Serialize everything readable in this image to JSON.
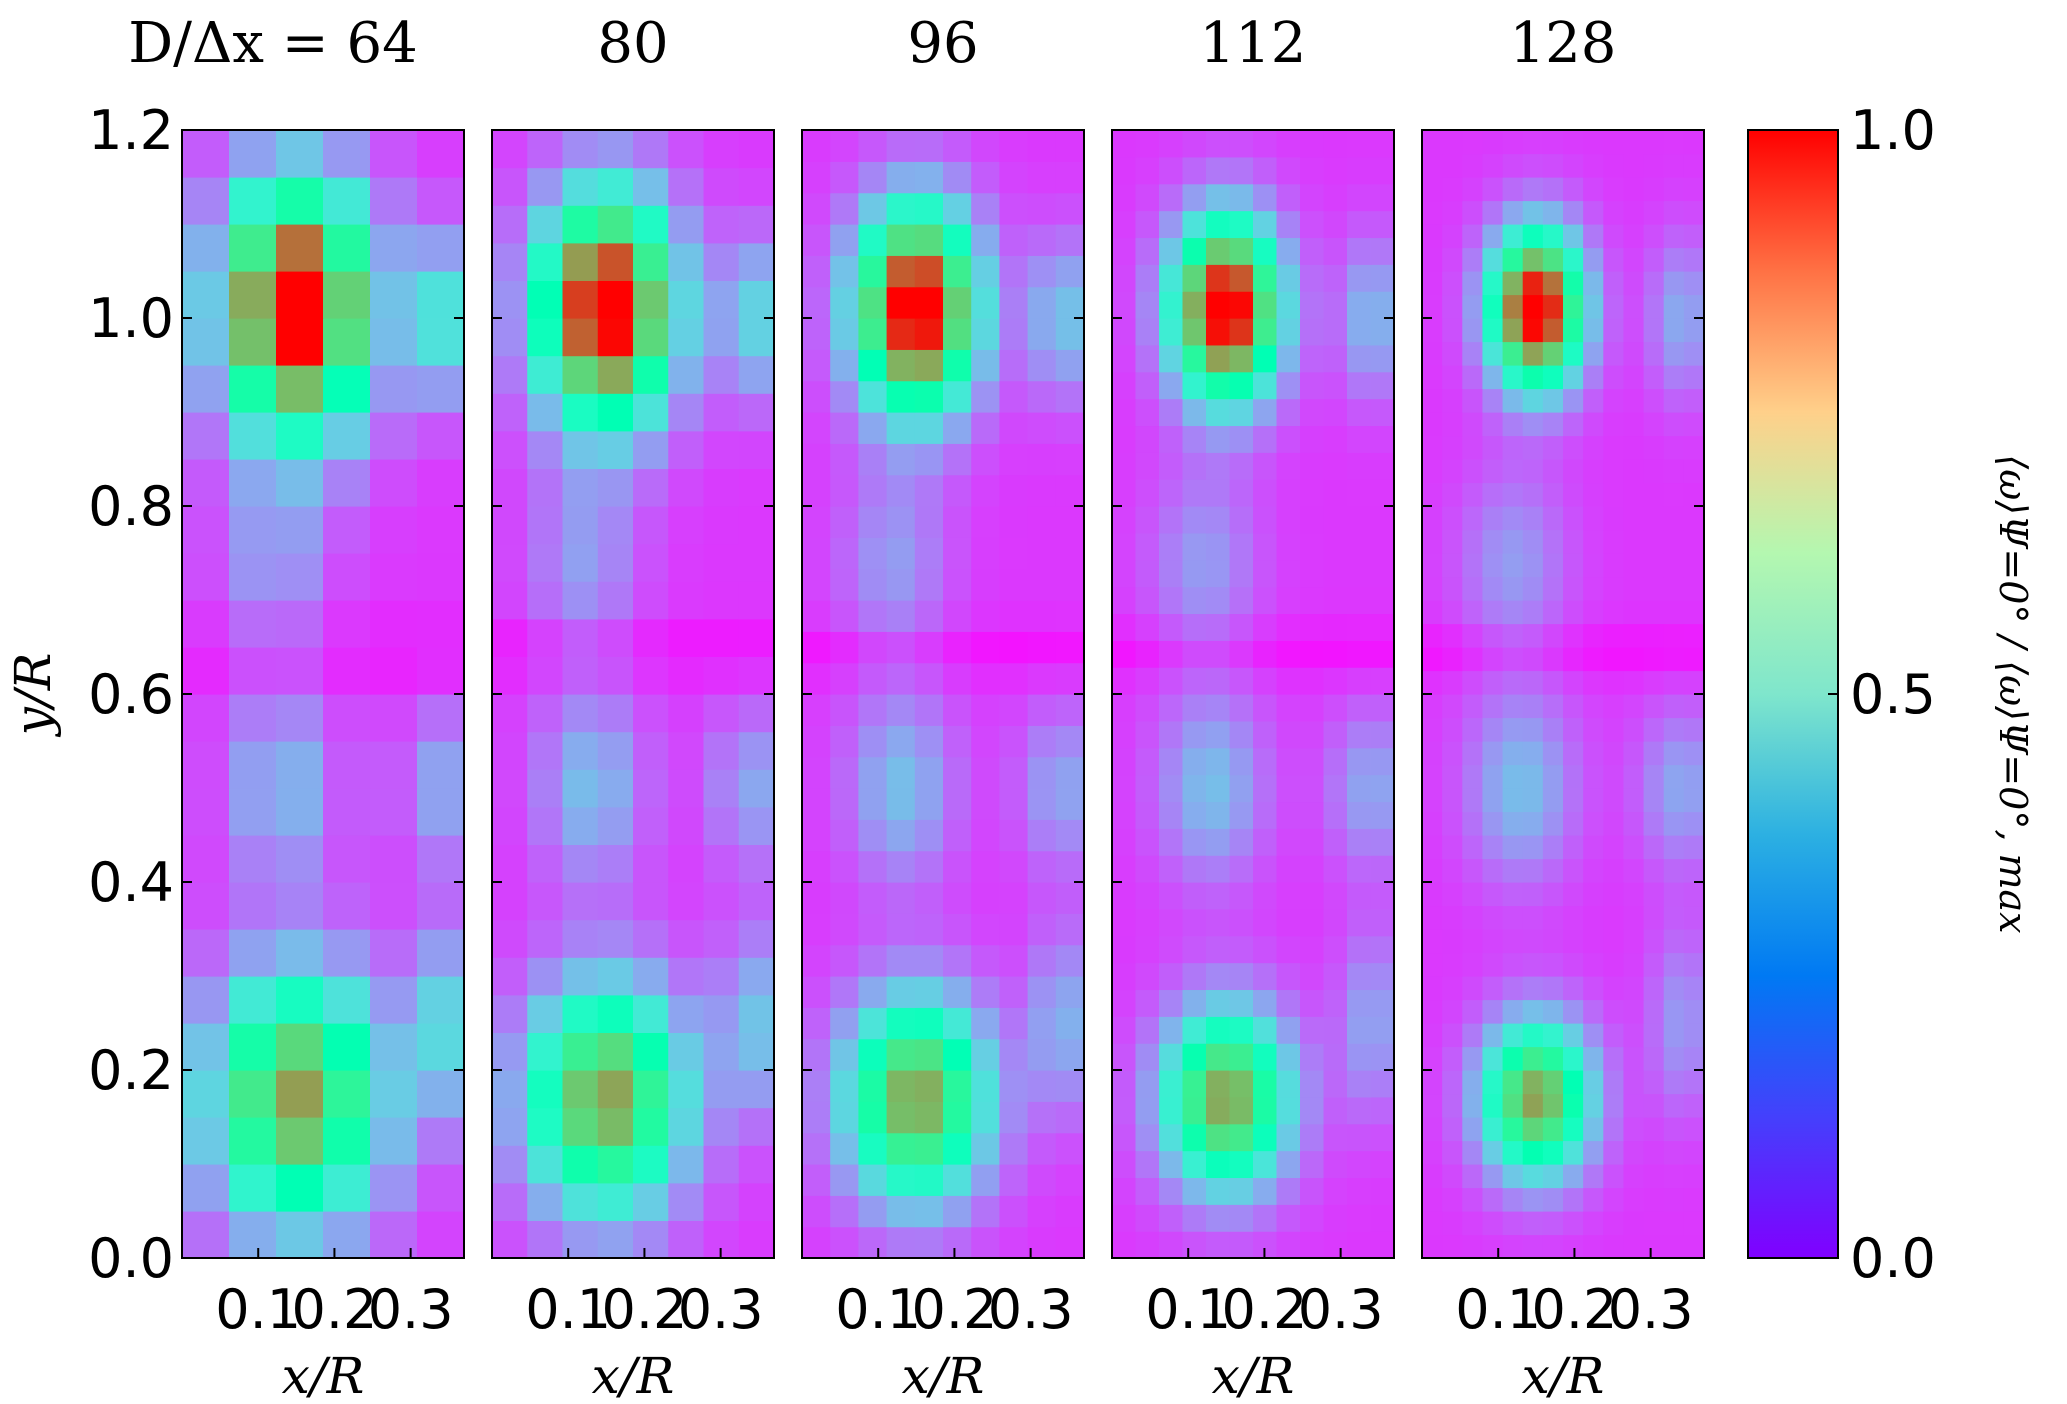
{
  "chart_data": {
    "type": "heatmap",
    "description_note": "",
    "panels": [
      {
        "title": "D/Δx = 64",
        "resolution": 64,
        "grid": {
          "nx": 6,
          "ny": 24
        }
      },
      {
        "title": "80",
        "resolution": 80,
        "grid": {
          "nx": 8,
          "ny": 30
        }
      },
      {
        "title": "96",
        "resolution": 96,
        "grid": {
          "nx": 10,
          "ny": 36
        }
      },
      {
        "title": "112",
        "resolution": 112,
        "grid": {
          "nx": 12,
          "ny": 42
        }
      },
      {
        "title": "128",
        "resolution": 128,
        "grid": {
          "nx": 14,
          "ny": 48
        }
      }
    ],
    "xlabel": "x/R",
    "ylabel": "y/R",
    "xlim": [
      0.0,
      0.37
    ],
    "ylim": [
      0.0,
      1.2
    ],
    "x_ticks": [
      "0.1",
      "0.2",
      "0.3"
    ],
    "x_tick_values": [
      0.1,
      0.2,
      0.3
    ],
    "y_ticks": [
      "0.0",
      "0.2",
      "0.4",
      "0.6",
      "0.8",
      "1.0",
      "1.2"
    ],
    "y_tick_values": [
      0.0,
      0.2,
      0.4,
      0.6,
      0.8,
      1.0,
      1.2
    ],
    "colorbar": {
      "label": "⟨ω⟩Ψ=0° / ⟨ω⟩Ψ=0°, max",
      "range": [
        0.0,
        1.0
      ],
      "ticks": [
        "0.0",
        "0.5",
        "1.0"
      ],
      "tick_values": [
        0.0,
        0.5,
        1.0
      ],
      "colormap": "rainbow"
    },
    "features": [
      {
        "name": "upper-vortex",
        "x": 0.15,
        "y": 1.01,
        "peak": 1.0
      },
      {
        "name": "lower-vortex",
        "x": 0.15,
        "y": 0.17,
        "peak": 0.72
      },
      {
        "name": "faint-mid-blob",
        "x": 0.12,
        "y": 0.5,
        "peak": 0.2
      },
      {
        "name": "faint-upper-blob",
        "x": 0.12,
        "y": 0.75,
        "peak": 0.15
      }
    ],
    "grid": false
  }
}
